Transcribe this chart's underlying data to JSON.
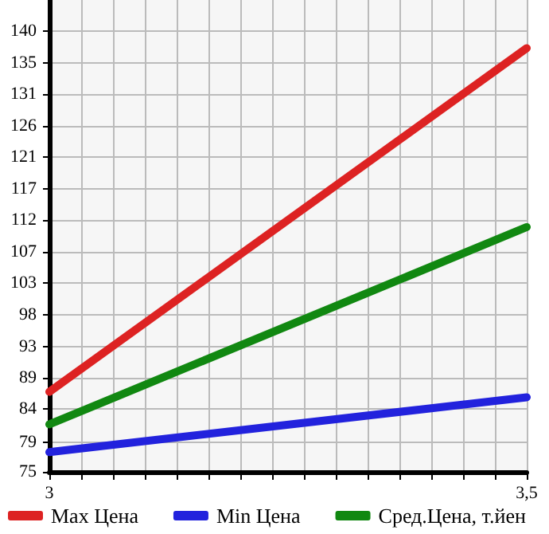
{
  "chart_data": {
    "type": "line",
    "x": [
      3,
      3.5
    ],
    "series": [
      {
        "name": "Max Цена",
        "color": "#dd2222",
        "values": [
          86.8,
          137.5
        ]
      },
      {
        "name": "Min Цена",
        "color": "#2222dd",
        "values": [
          77.9,
          86
        ]
      },
      {
        "name": "Сред.Цена, т.йен",
        "color": "#118811",
        "values": [
          82,
          111.1
        ]
      }
    ],
    "xlim": [
      3,
      3.5
    ],
    "xticks": [
      {
        "value": 3,
        "label": "3"
      },
      {
        "value": 3.0333,
        "label": null
      },
      {
        "value": 3.0667,
        "label": null
      },
      {
        "value": 3.1,
        "label": null
      },
      {
        "value": 3.1333,
        "label": null
      },
      {
        "value": 3.1667,
        "label": null
      },
      {
        "value": 3.2,
        "label": null
      },
      {
        "value": 3.2333,
        "label": null
      },
      {
        "value": 3.2667,
        "label": null
      },
      {
        "value": 3.3,
        "label": null
      },
      {
        "value": 3.3333,
        "label": null
      },
      {
        "value": 3.3667,
        "label": null
      },
      {
        "value": 3.4,
        "label": null
      },
      {
        "value": 3.4333,
        "label": null
      },
      {
        "value": 3.4667,
        "label": null
      },
      {
        "value": 3.5,
        "label": "3,5"
      }
    ],
    "ylim": [
      75,
      144.6
    ],
    "yticks": [
      {
        "value": 75,
        "label": "75"
      },
      {
        "value": 79.4,
        "label": "79"
      },
      {
        "value": 84.29,
        "label": "84"
      },
      {
        "value": 88.93,
        "label": "89"
      },
      {
        "value": 93.4,
        "label": "93"
      },
      {
        "value": 98.21,
        "label": "98"
      },
      {
        "value": 102.86,
        "label": "103"
      },
      {
        "value": 107.5,
        "label": "107"
      },
      {
        "value": 112.14,
        "label": "112"
      },
      {
        "value": 116.79,
        "label": "117"
      },
      {
        "value": 121.43,
        "label": "121"
      },
      {
        "value": 126.07,
        "label": "126"
      },
      {
        "value": 130.71,
        "label": "131"
      },
      {
        "value": 135.36,
        "label": "135"
      },
      {
        "value": 140,
        "label": "140"
      }
    ],
    "grid": true,
    "legend": "bottom",
    "marker": "none",
    "line_style": "solid"
  }
}
